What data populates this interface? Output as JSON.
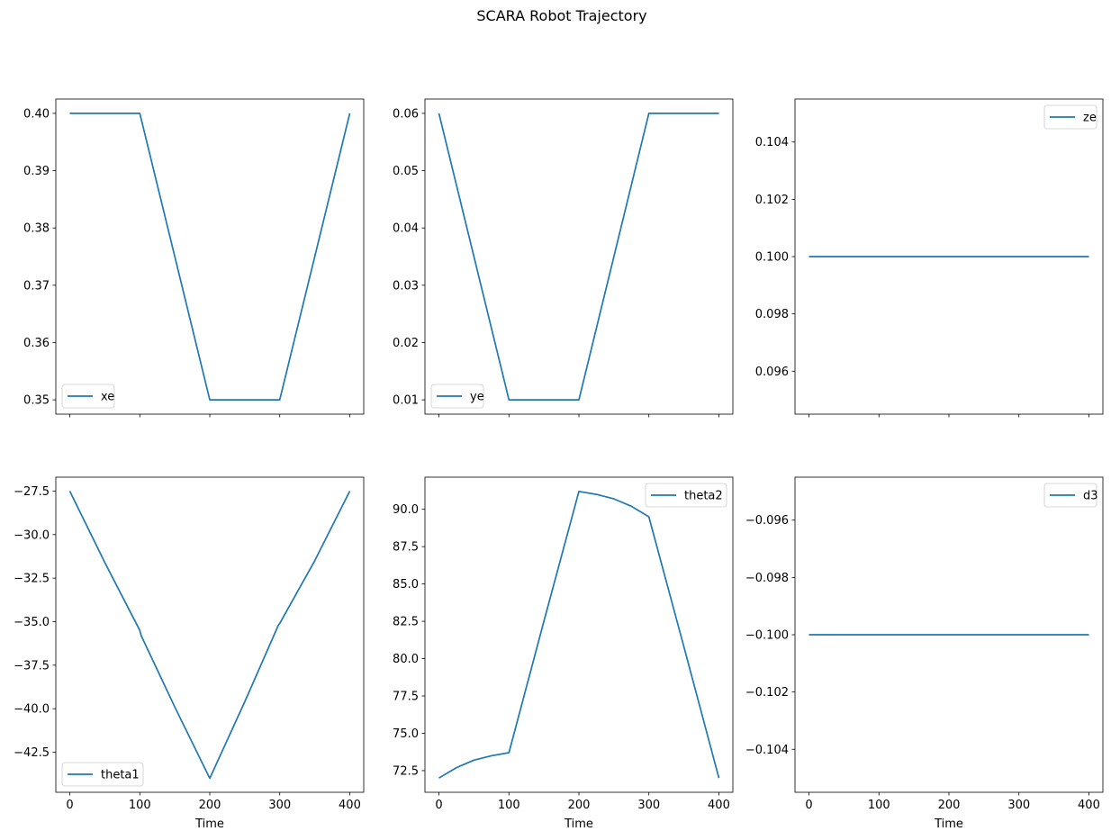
{
  "figure_title": "SCARA Robot Trajectory",
  "colors": {
    "line": "#1f77b4",
    "axes": "#000000",
    "background": "#ffffff",
    "legend_border": "#cccccc"
  },
  "chart_data": [
    {
      "type": "line",
      "panel": "top-left",
      "series": [
        {
          "name": "xe",
          "x": [
            0,
            100,
            200,
            300,
            400
          ],
          "y": [
            0.4,
            0.4,
            0.35,
            0.35,
            0.4
          ]
        }
      ],
      "xlim": [
        -20,
        420
      ],
      "ylim": [
        0.3475,
        0.4025
      ],
      "xticks": [
        0,
        100,
        200,
        300,
        400
      ],
      "xtick_labels_shown": false,
      "yticks": [
        0.35,
        0.36,
        0.37,
        0.38,
        0.39,
        0.4
      ],
      "ytick_labels": [
        "0.35",
        "0.36",
        "0.37",
        "0.38",
        "0.39",
        "0.40"
      ],
      "xlabel": "",
      "legend": "lower-left",
      "grid": false
    },
    {
      "type": "line",
      "panel": "top-middle",
      "series": [
        {
          "name": "ye",
          "x": [
            0,
            100,
            200,
            300,
            400
          ],
          "y": [
            0.06,
            0.01,
            0.01,
            0.06,
            0.06
          ]
        }
      ],
      "xlim": [
        -20,
        420
      ],
      "ylim": [
        0.0075,
        0.0625
      ],
      "xticks": [
        0,
        100,
        200,
        300,
        400
      ],
      "xtick_labels_shown": false,
      "yticks": [
        0.01,
        0.02,
        0.03,
        0.04,
        0.05,
        0.06
      ],
      "ytick_labels": [
        "0.01",
        "0.02",
        "0.03",
        "0.04",
        "0.05",
        "0.06"
      ],
      "xlabel": "",
      "legend": "lower-left",
      "grid": false
    },
    {
      "type": "line",
      "panel": "top-right",
      "series": [
        {
          "name": "ze",
          "x": [
            0,
            400
          ],
          "y": [
            0.1,
            0.1
          ]
        }
      ],
      "xlim": [
        -20,
        420
      ],
      "ylim": [
        0.0945,
        0.1055
      ],
      "xticks": [
        0,
        100,
        200,
        300,
        400
      ],
      "xtick_labels_shown": false,
      "yticks": [
        0.096,
        0.098,
        0.1,
        0.102,
        0.104
      ],
      "ytick_labels": [
        "0.096",
        "0.098",
        "0.100",
        "0.102",
        "0.104"
      ],
      "xlabel": "",
      "legend": "upper-right",
      "grid": false
    },
    {
      "type": "line",
      "panel": "bottom-left",
      "series": [
        {
          "name": "theta1",
          "x": [
            0,
            50,
            100,
            102,
            150,
            200,
            250,
            298,
            300,
            350,
            400
          ],
          "y": [
            -27.5,
            -31.6,
            -35.5,
            -35.8,
            -39.9,
            -44.0,
            -39.6,
            -35.2,
            -35.1,
            -31.5,
            -27.5
          ]
        }
      ],
      "xlim": [
        -20,
        420
      ],
      "ylim": [
        -44.8,
        -26.7
      ],
      "xticks": [
        0,
        100,
        200,
        300,
        400
      ],
      "xtick_labels": [
        "0",
        "100",
        "200",
        "300",
        "400"
      ],
      "yticks": [
        -42.5,
        -40.0,
        -37.5,
        -35.0,
        -32.5,
        -30.0,
        -27.5
      ],
      "ytick_labels": [
        "−42.5",
        "−40.0",
        "−37.5",
        "−35.0",
        "−32.5",
        "−30.0",
        "−27.5"
      ],
      "xlabel": "Time",
      "legend": "lower-left",
      "grid": false
    },
    {
      "type": "line",
      "panel": "bottom-middle",
      "series": [
        {
          "name": "theta2",
          "x": [
            0,
            25,
            50,
            75,
            100,
            150,
            200,
            225,
            250,
            275,
            300,
            350,
            400
          ],
          "y": [
            72.0,
            72.7,
            73.2,
            73.5,
            73.7,
            82.5,
            91.2,
            91.0,
            90.7,
            90.2,
            89.5,
            80.8,
            72.0
          ]
        }
      ],
      "xlim": [
        -20,
        420
      ],
      "ylim": [
        71.05,
        92.15
      ],
      "xticks": [
        0,
        100,
        200,
        300,
        400
      ],
      "xtick_labels": [
        "0",
        "100",
        "200",
        "300",
        "400"
      ],
      "yticks": [
        72.5,
        75.0,
        77.5,
        80.0,
        82.5,
        85.0,
        87.5,
        90.0
      ],
      "ytick_labels": [
        "72.5",
        "75.0",
        "77.5",
        "80.0",
        "82.5",
        "85.0",
        "87.5",
        "90.0"
      ],
      "xlabel": "Time",
      "legend": "upper-right",
      "grid": false
    },
    {
      "type": "line",
      "panel": "bottom-right",
      "series": [
        {
          "name": "d3",
          "x": [
            0,
            400
          ],
          "y": [
            -0.1,
            -0.1
          ]
        }
      ],
      "xlim": [
        -20,
        420
      ],
      "ylim": [
        -0.1055,
        -0.0945
      ],
      "xticks": [
        0,
        100,
        200,
        300,
        400
      ],
      "xtick_labels": [
        "0",
        "100",
        "200",
        "300",
        "400"
      ],
      "yticks": [
        -0.104,
        -0.102,
        -0.1,
        -0.098,
        -0.096
      ],
      "ytick_labels": [
        "−0.104",
        "−0.102",
        "−0.100",
        "−0.098",
        "−0.096"
      ],
      "xlabel": "Time",
      "legend": "upper-right",
      "grid": false
    }
  ]
}
